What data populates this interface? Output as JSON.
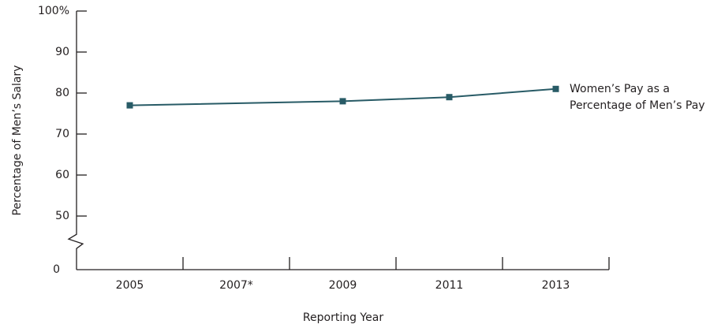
{
  "chart_data": {
    "type": "line",
    "x_label": "Reporting Year",
    "y_label": "Percentage of Men’s Salary",
    "x": [
      2005,
      2009,
      2011,
      2013
    ],
    "series": [
      {
        "name": "Women’s Pay as a Percentage of Men’s Pay",
        "color": "#285b66",
        "values": [
          77,
          78,
          79,
          81
        ]
      }
    ],
    "xlim": [
      2004,
      2014
    ],
    "xticks": [
      2005,
      {
        "value": 2007,
        "label": "2007*"
      },
      2009,
      2011,
      2013
    ],
    "ylim": [
      0,
      100
    ],
    "yticks": [
      0,
      50,
      60,
      70,
      80,
      90,
      {
        "value": 100,
        "label": "100%"
      }
    ],
    "axis_break": 44,
    "grid": false
  }
}
